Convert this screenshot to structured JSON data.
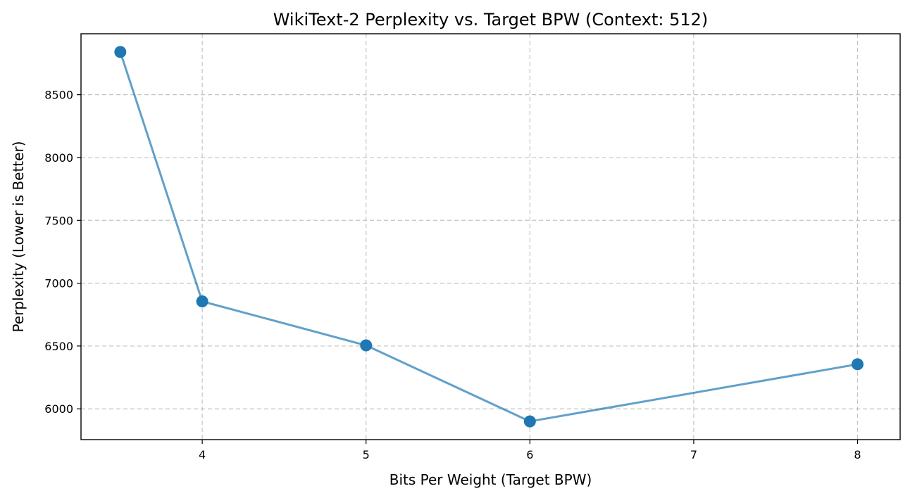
{
  "chart_data": {
    "type": "line",
    "title": "WikiText-2 Perplexity vs. Target BPW (Context: 512)",
    "xlabel": "Bits Per Weight (Target BPW)",
    "ylabel": "Perplexity (Lower is Better)",
    "xlim": [
      3.26,
      8.26
    ],
    "ylim": [
      5755,
      8985
    ],
    "x_ticks": [
      4,
      5,
      6,
      7,
      8
    ],
    "y_ticks": [
      6000,
      6500,
      7000,
      7500,
      8000,
      8500
    ],
    "x_tick_labels": [
      "4",
      "5",
      "6",
      "7",
      "8"
    ],
    "y_tick_labels": [
      "6000",
      "6500",
      "7000",
      "7500",
      "8000",
      "8500"
    ],
    "grid": true,
    "legend": "none",
    "series": [
      {
        "color": "#1f77b4",
        "line_alpha": 0.7,
        "marker": "circle",
        "points": [
          {
            "x": 3.5,
            "y": 8840
          },
          {
            "x": 4,
            "y": 6855
          },
          {
            "x": 5,
            "y": 6505
          },
          {
            "x": 6,
            "y": 5900
          },
          {
            "x": 8,
            "y": 6355
          }
        ]
      }
    ]
  }
}
